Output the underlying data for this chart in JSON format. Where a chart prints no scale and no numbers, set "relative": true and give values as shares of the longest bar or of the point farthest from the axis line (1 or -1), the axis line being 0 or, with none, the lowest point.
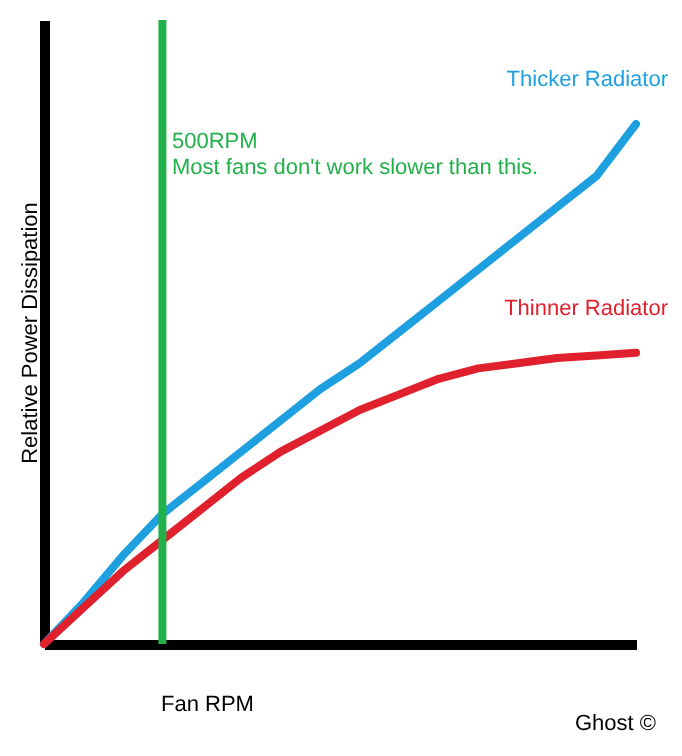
{
  "chart_data": {
    "type": "line",
    "relative": true,
    "xlabel": "Fan RPM",
    "ylabel": "Relative Power Dissipation",
    "categories": [
      null,
      null,
      null,
      null,
      null,
      null,
      null,
      null,
      null,
      null,
      null,
      null,
      null,
      null,
      null,
      null
    ],
    "series": [
      {
        "name": "Thicker Radiator",
        "color": "#1ea0e0",
        "values": [
          0,
          0.08,
          0.17,
          0.25,
          0.31,
          0.37,
          0.43,
          0.49,
          0.54,
          0.6,
          0.66,
          0.72,
          0.78,
          0.84,
          0.9,
          1
        ]
      },
      {
        "name": "Thinner Radiator",
        "color": "#e0202c",
        "values": [
          0,
          0.07,
          0.14,
          0.2,
          0.26,
          0.32,
          0.37,
          0.41,
          0.45,
          0.48,
          0.51,
          0.53,
          0.54,
          0.55,
          0.555,
          0.56
        ]
      }
    ],
    "annotations": [
      "500RPM\nMost fans don't work slower than this.",
      "Ghost ©"
    ],
    "marker": "none"
  }
}
